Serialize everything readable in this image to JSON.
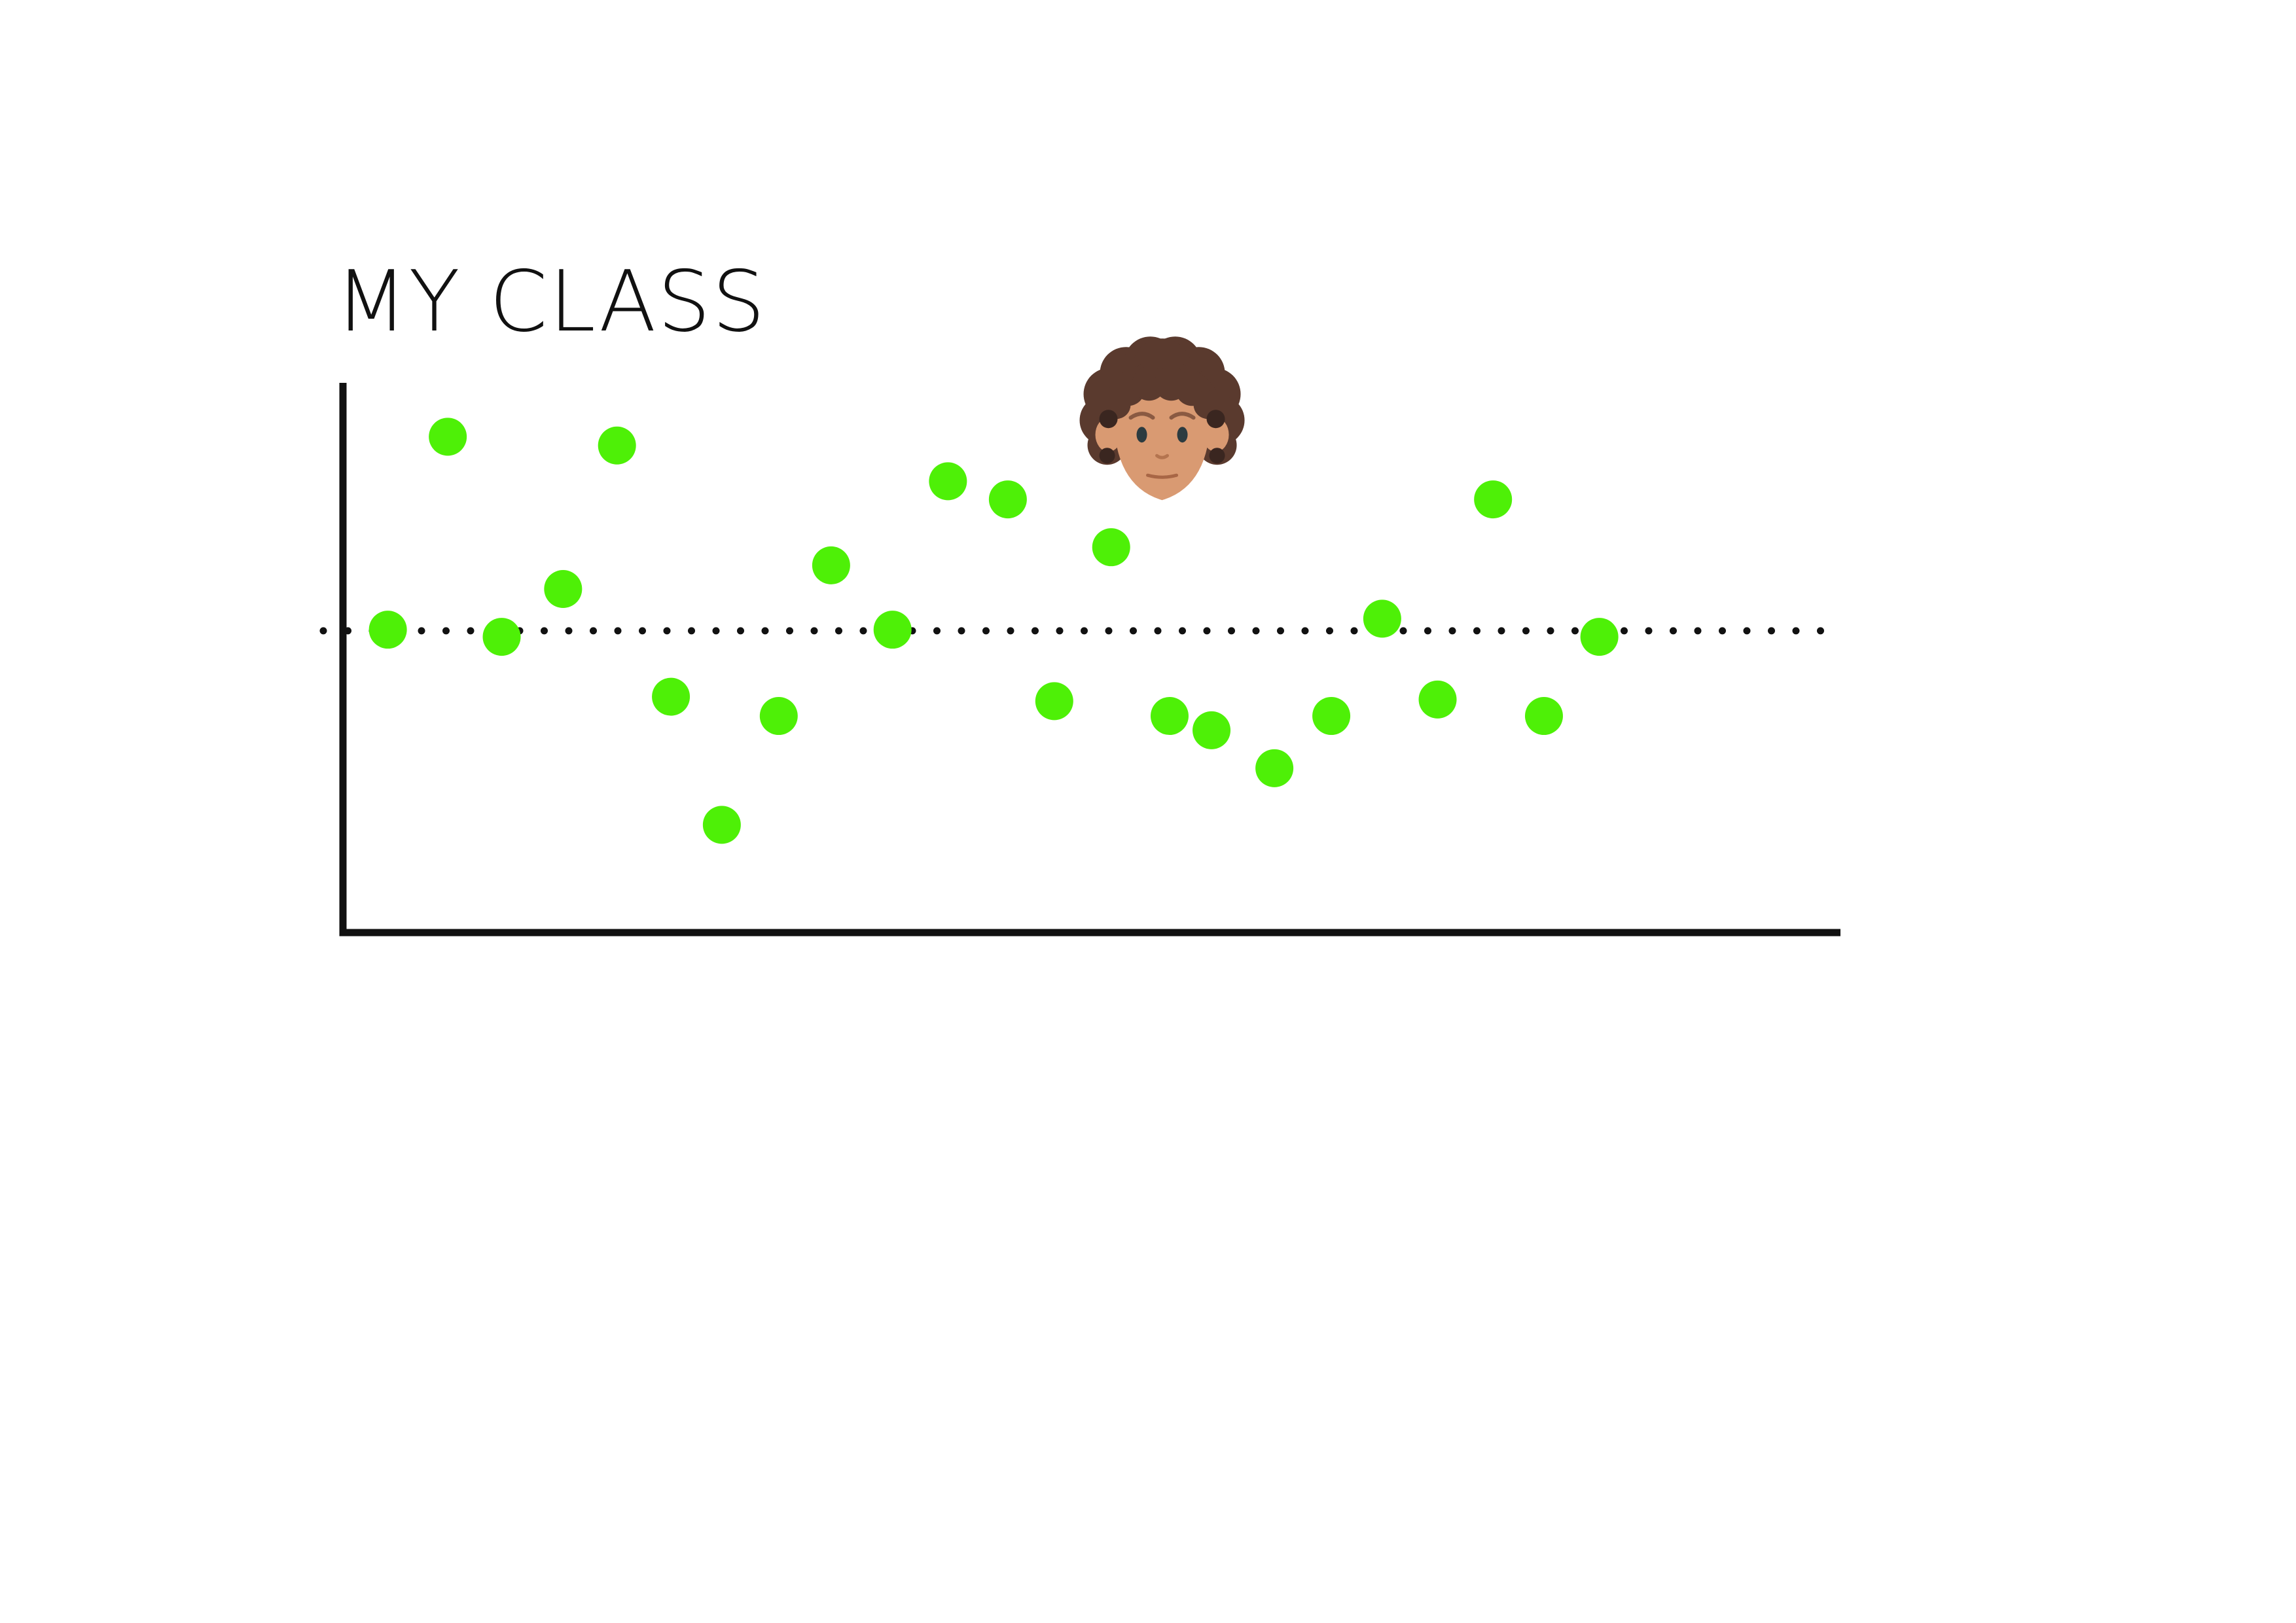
{
  "chart_data": {
    "type": "scatter",
    "title": "MY CLASS",
    "xlabel": "",
    "ylabel": "",
    "xlim": [
      0,
      100
    ],
    "ylim": [
      0,
      100
    ],
    "grid": false,
    "mean_line": {
      "y": 54.9,
      "style": "dotted",
      "color": "#111111"
    },
    "series": [
      {
        "marker_color": "#4ef007",
        "points": [
          {
            "x": 3.0,
            "y": 55.1
          },
          {
            "x": 7.0,
            "y": 90.2
          },
          {
            "x": 10.6,
            "y": 53.8
          },
          {
            "x": 14.7,
            "y": 62.5
          },
          {
            "x": 18.3,
            "y": 88.6
          },
          {
            "x": 21.9,
            "y": 42.9
          },
          {
            "x": 25.3,
            "y": 19.6
          },
          {
            "x": 29.1,
            "y": 39.4
          },
          {
            "x": 32.6,
            "y": 66.8
          },
          {
            "x": 36.7,
            "y": 55.1
          },
          {
            "x": 40.4,
            "y": 82.1
          },
          {
            "x": 44.4,
            "y": 78.8
          },
          {
            "x": 47.5,
            "y": 42.1
          },
          {
            "x": 51.3,
            "y": 70.1
          },
          {
            "x": 55.2,
            "y": 39.4
          },
          {
            "x": 58.0,
            "y": 36.8
          },
          {
            "x": 62.2,
            "y": 29.9
          },
          {
            "x": 66.0,
            "y": 39.4
          },
          {
            "x": 69.4,
            "y": 57.1
          },
          {
            "x": 73.1,
            "y": 42.4
          },
          {
            "x": 76.8,
            "y": 78.8
          },
          {
            "x": 80.2,
            "y": 39.4
          },
          {
            "x": 83.9,
            "y": 53.8
          }
        ]
      }
    ],
    "highlight": {
      "icon": "student-avatar-icon",
      "x": 54.7,
      "y": 92.0
    }
  }
}
